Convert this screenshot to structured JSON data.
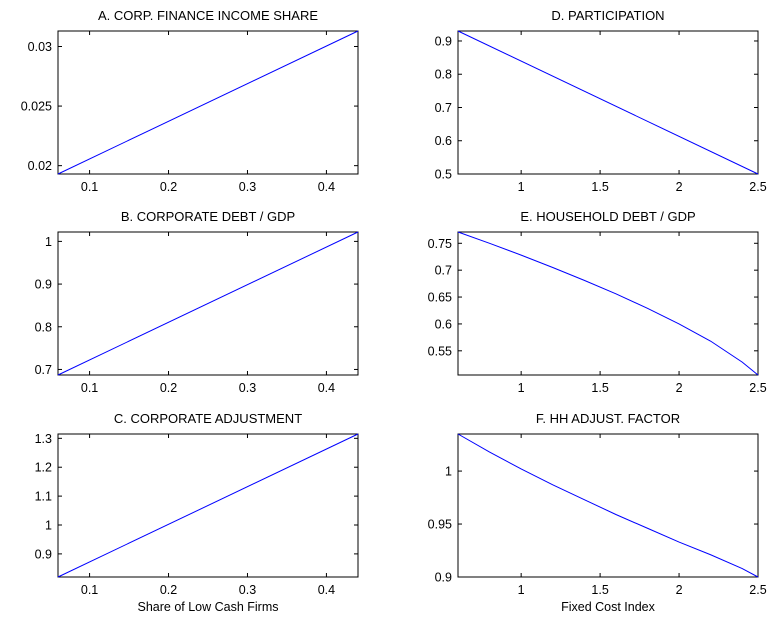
{
  "chart_data": [
    {
      "type": "line",
      "title": "A. CORP. FINANCE INCOME SHARE",
      "xlabel": "",
      "ylabel": "",
      "xlim": [
        0.06,
        0.44
      ],
      "ylim": [
        0.0193,
        0.0313
      ],
      "xticks": [
        0.1,
        0.2,
        0.3,
        0.4
      ],
      "xtick_labels": [
        "0.1",
        "0.2",
        "0.3",
        "0.4"
      ],
      "yticks": [
        0.02,
        0.025,
        0.03
      ],
      "ytick_labels": [
        "0.02",
        "0.025",
        "0.03"
      ],
      "grid": false,
      "series": [
        {
          "color": "#0000ff",
          "x": [
            0.06,
            0.44
          ],
          "y": [
            0.0193,
            0.0313
          ]
        }
      ]
    },
    {
      "type": "line",
      "title": "B. CORPORATE DEBT / GDP",
      "xlabel": "",
      "ylabel": "",
      "xlim": [
        0.06,
        0.44
      ],
      "ylim": [
        0.687,
        1.022
      ],
      "xticks": [
        0.1,
        0.2,
        0.3,
        0.4
      ],
      "xtick_labels": [
        "0.1",
        "0.2",
        "0.3",
        "0.4"
      ],
      "yticks": [
        0.7,
        0.8,
        0.9,
        1.0
      ],
      "ytick_labels": [
        "0.7",
        "0.8",
        "0.9",
        "1"
      ],
      "grid": false,
      "series": [
        {
          "color": "#0000ff",
          "x": [
            0.06,
            0.44
          ],
          "y": [
            0.687,
            1.022
          ]
        }
      ]
    },
    {
      "type": "line",
      "title": "C. CORPORATE ADJUSTMENT",
      "xlabel": "Share of Low Cash Firms",
      "ylabel": "",
      "xlim": [
        0.06,
        0.44
      ],
      "ylim": [
        0.82,
        1.315
      ],
      "xticks": [
        0.1,
        0.2,
        0.3,
        0.4
      ],
      "xtick_labels": [
        "0.1",
        "0.2",
        "0.3",
        "0.4"
      ],
      "yticks": [
        0.9,
        1.0,
        1.1,
        1.2,
        1.3
      ],
      "ytick_labels": [
        "0.9",
        "1",
        "1.1",
        "1.2",
        "1.3"
      ],
      "grid": false,
      "series": [
        {
          "color": "#0000ff",
          "x": [
            0.06,
            0.44
          ],
          "y": [
            0.82,
            1.315
          ]
        }
      ]
    },
    {
      "type": "line",
      "title": "D. PARTICIPATION",
      "xlabel": "",
      "ylabel": "",
      "xlim": [
        0.6,
        2.5
      ],
      "ylim": [
        0.5,
        0.93
      ],
      "xticks": [
        1,
        1.5,
        2,
        2.5
      ],
      "xtick_labels": [
        "1",
        "1.5",
        "2",
        "2.5"
      ],
      "yticks": [
        0.5,
        0.6,
        0.7,
        0.8,
        0.9
      ],
      "ytick_labels": [
        "0.5",
        "0.6",
        "0.7",
        "0.8",
        "0.9"
      ],
      "grid": false,
      "series": [
        {
          "color": "#0000ff",
          "x": [
            0.6,
            2.5
          ],
          "y": [
            0.93,
            0.5
          ]
        }
      ]
    },
    {
      "type": "line",
      "title": "E. HOUSEHOLD DEBT / GDP",
      "xlabel": "",
      "ylabel": "",
      "xlim": [
        0.6,
        2.5
      ],
      "ylim": [
        0.505,
        0.771
      ],
      "xticks": [
        1,
        1.5,
        2,
        2.5
      ],
      "xtick_labels": [
        "1",
        "1.5",
        "2",
        "2.5"
      ],
      "yticks": [
        0.55,
        0.6,
        0.65,
        0.7,
        0.75
      ],
      "ytick_labels": [
        "0.55",
        "0.6",
        "0.65",
        "0.7",
        "0.75"
      ],
      "grid": false,
      "series": [
        {
          "color": "#0000ff",
          "x": [
            0.6,
            0.8,
            1.0,
            1.2,
            1.4,
            1.6,
            1.8,
            2.0,
            2.2,
            2.4,
            2.5
          ],
          "y": [
            0.771,
            0.75,
            0.728,
            0.705,
            0.681,
            0.656,
            0.629,
            0.6,
            0.568,
            0.529,
            0.505
          ]
        }
      ]
    },
    {
      "type": "line",
      "title": "F. HH ADJUST. FACTOR",
      "xlabel": "Fixed Cost Index",
      "ylabel": "",
      "xlim": [
        0.6,
        2.5
      ],
      "ylim": [
        0.9,
        1.035
      ],
      "xticks": [
        1,
        1.5,
        2,
        2.5
      ],
      "xtick_labels": [
        "1",
        "1.5",
        "2",
        "2.5"
      ],
      "yticks": [
        0.9,
        0.95,
        1.0
      ],
      "ytick_labels": [
        "0.9",
        "0.95",
        "1"
      ],
      "grid": false,
      "series": [
        {
          "color": "#0000ff",
          "x": [
            0.6,
            0.8,
            1.0,
            1.2,
            1.4,
            1.6,
            1.8,
            2.0,
            2.2,
            2.4,
            2.5
          ],
          "y": [
            1.035,
            1.018,
            1.002,
            0.987,
            0.973,
            0.959,
            0.946,
            0.933,
            0.921,
            0.908,
            0.9
          ]
        }
      ]
    }
  ]
}
